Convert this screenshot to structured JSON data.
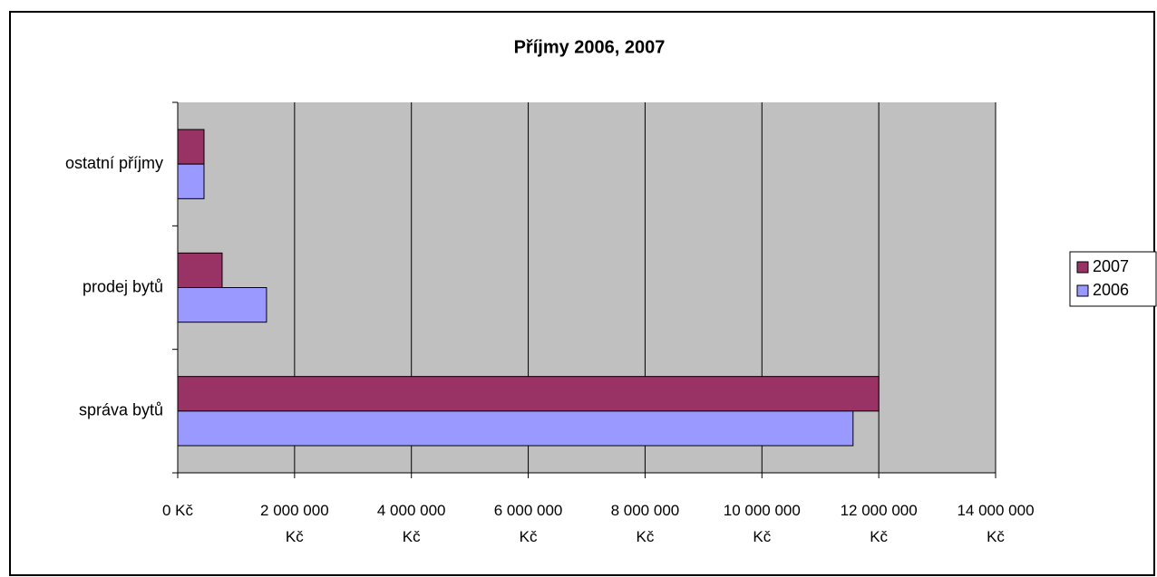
{
  "chart_data": {
    "type": "hbar",
    "title": "Příjmy 2006, 2007",
    "categories": [
      "ostatní příjmy",
      "prodej bytů",
      "správa bytů"
    ],
    "series": [
      {
        "name": "2007",
        "color": "#993366",
        "values": [
          450000,
          760000,
          12000000
        ]
      },
      {
        "name": "2006",
        "color": "#9999ff",
        "values": [
          450000,
          1520000,
          11560000
        ]
      }
    ],
    "xlim": [
      0,
      14000000
    ],
    "xticks": [
      {
        "value": 0,
        "label": "0 Kč"
      },
      {
        "value": 2000000,
        "label": "2 000 000 Kč"
      },
      {
        "value": 4000000,
        "label": "4 000 000 Kč"
      },
      {
        "value": 6000000,
        "label": "6 000 000 Kč"
      },
      {
        "value": 8000000,
        "label": "8 000 000 Kč"
      },
      {
        "value": 10000000,
        "label": "10 000 000 Kč"
      },
      {
        "value": 12000000,
        "label": "12 000 000 Kč"
      },
      {
        "value": 14000000,
        "label": "14 000 000 Kč"
      }
    ],
    "grid": true,
    "legend": "right"
  }
}
